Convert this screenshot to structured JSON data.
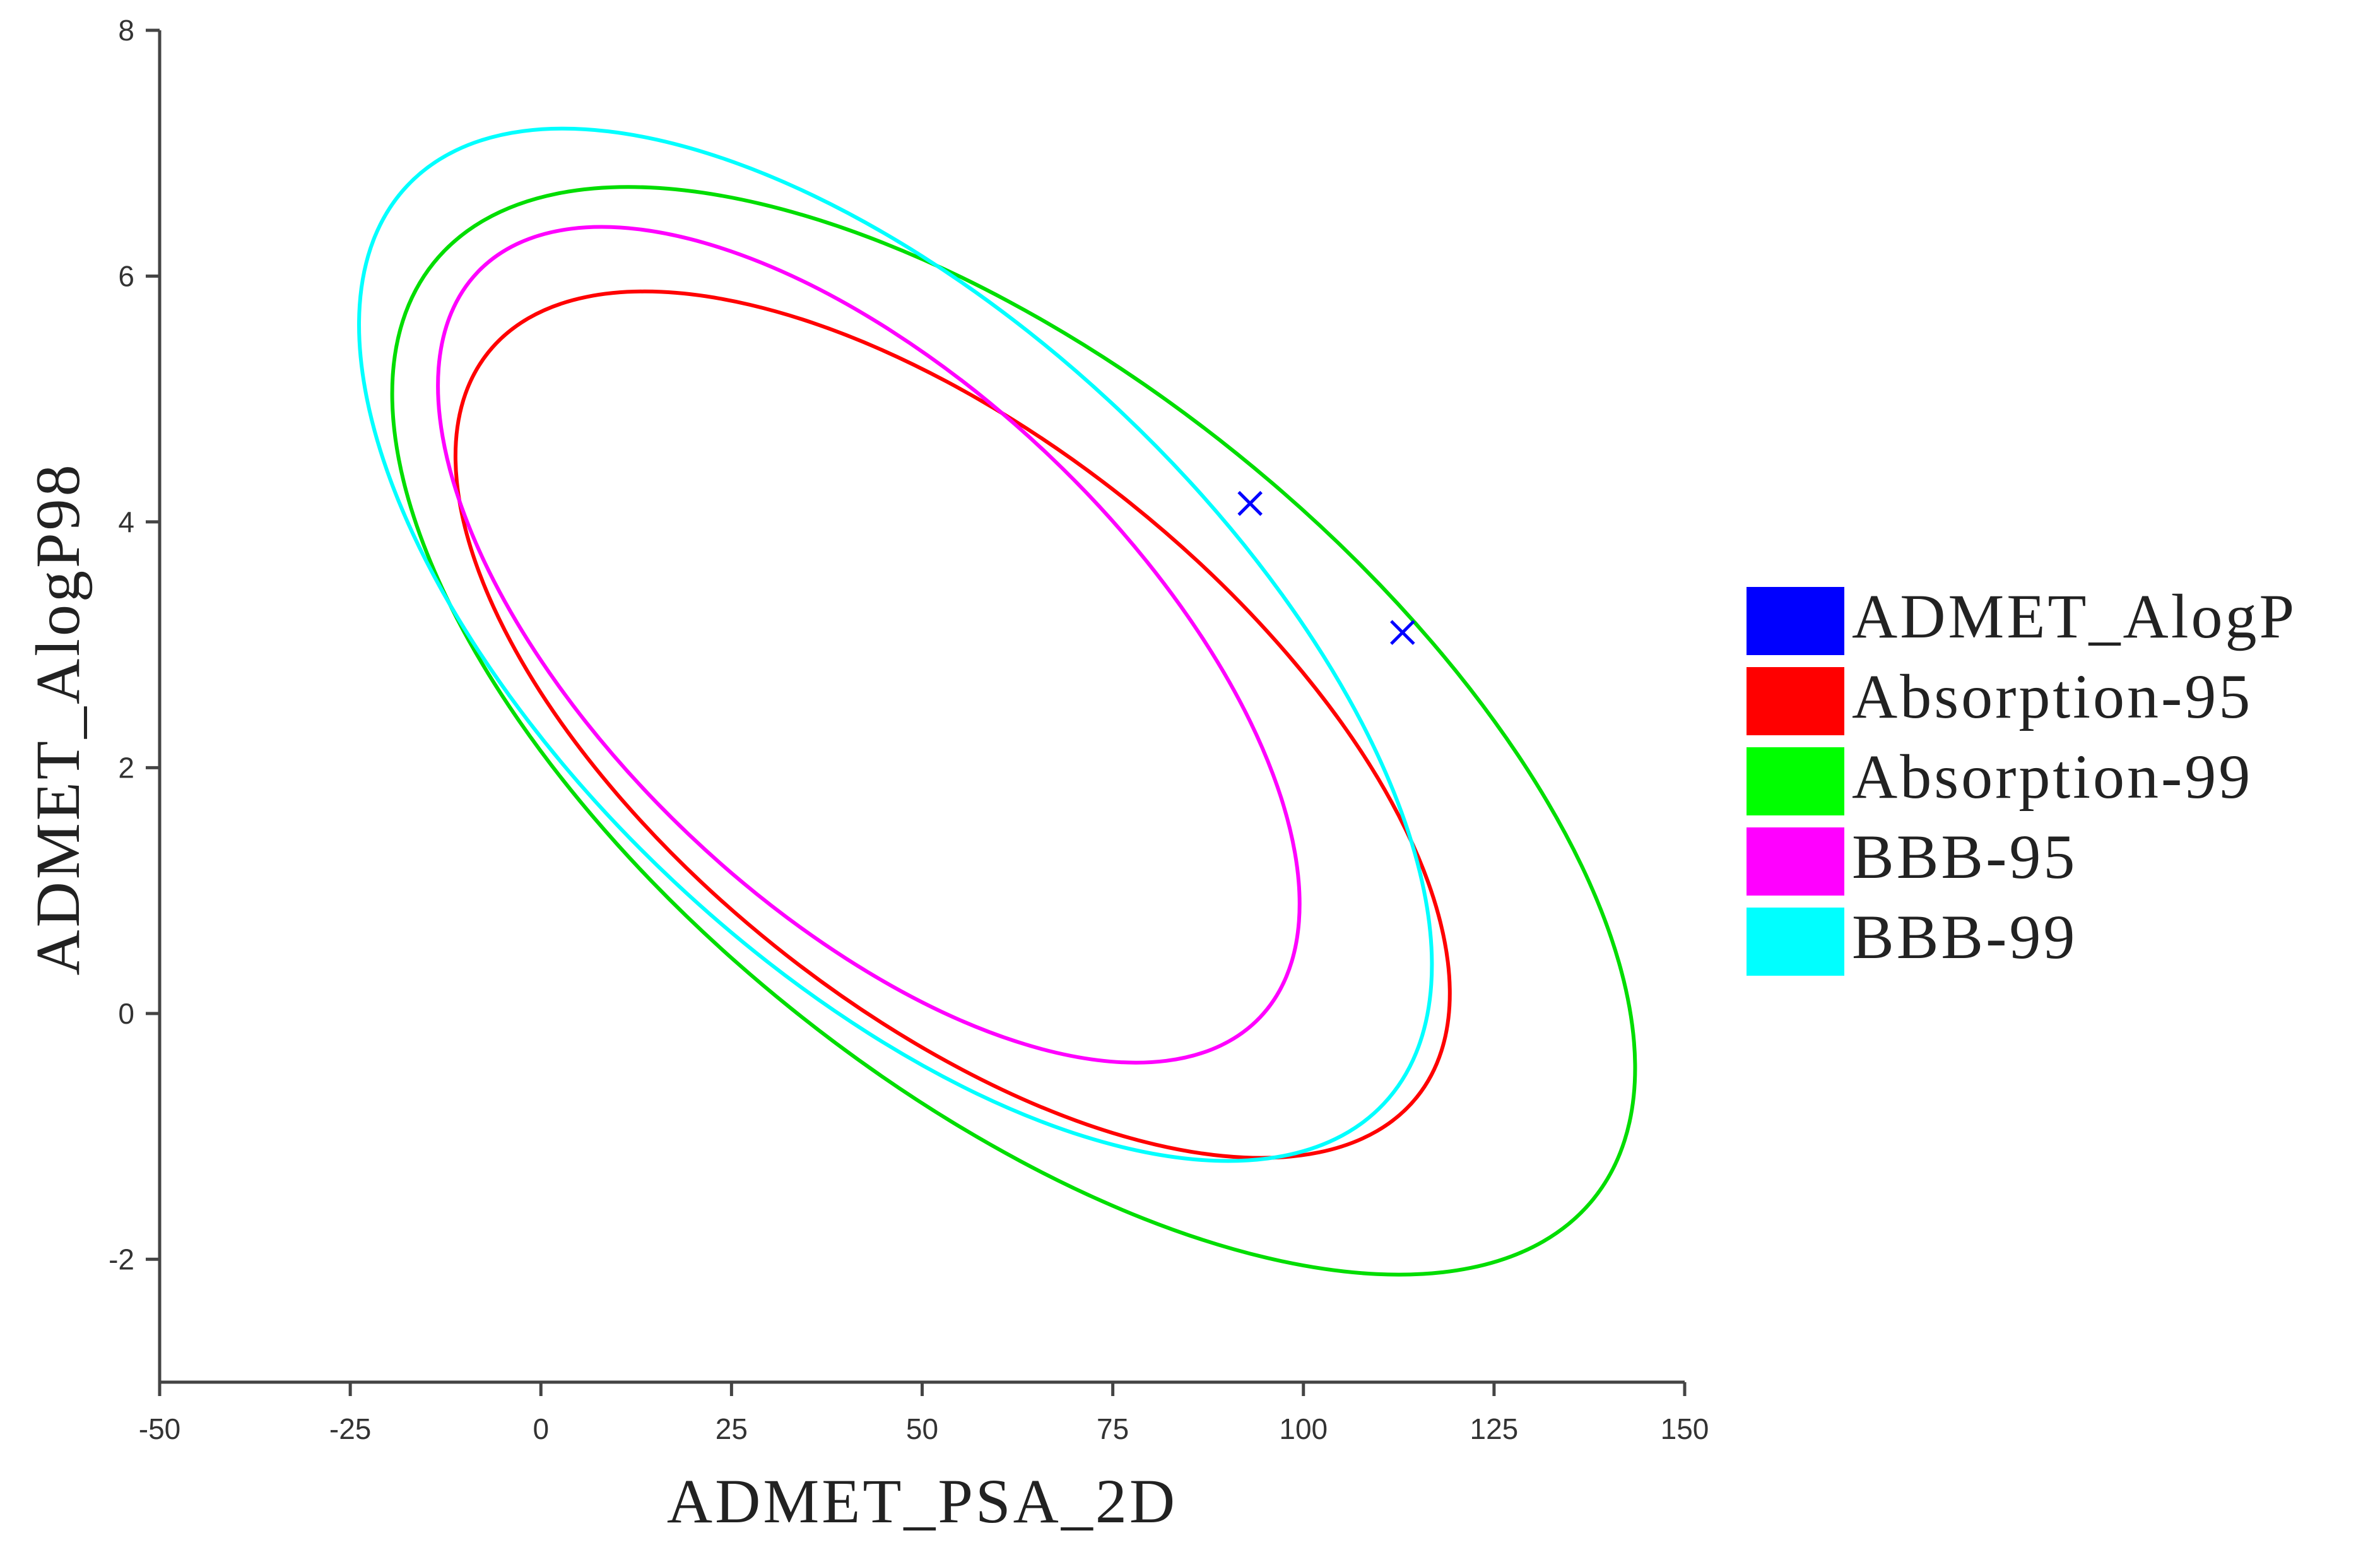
{
  "chart_data": {
    "type": "scatter",
    "xlabel": "ADMET_PSA_2D",
    "ylabel": "ADMET_AlogP98",
    "xlim": [
      -50,
      150
    ],
    "ylim": [
      -3,
      8
    ],
    "xticks": [
      "-50",
      "-25",
      "0",
      "25",
      "50",
      "75",
      "100",
      "125",
      "150"
    ],
    "yticks": [
      "-2",
      "0",
      "2",
      "4",
      "6",
      "8"
    ],
    "grid": false,
    "legend_position": "right",
    "points": {
      "name": "ADMET_AlogP",
      "color": "#0000ff",
      "marker": "x",
      "values": [
        {
          "x": 93,
          "y": 4.15
        },
        {
          "x": 113,
          "y": 3.1
        }
      ]
    },
    "ellipses": [
      {
        "name": "Absorption-95",
        "color": "#ff0000",
        "center": [
          54,
          2.35
        ],
        "extreme_x": [
          -1.6,
          128.8
        ],
        "extreme_y": [
          -1.2,
          5.85
        ]
      },
      {
        "name": "Absorption-99",
        "color": "#00dd00",
        "center": [
          62,
          2.3
        ],
        "extreme_x": [
          -18,
          145
        ],
        "extreme_y": [
          -2.1,
          6.75
        ]
      },
      {
        "name": "BBB-95",
        "color": "#ff00ff",
        "center": [
          43,
          3.0
        ],
        "extreme_x": [
          -13.4,
          99.6
        ],
        "extreme_y": [
          -0.4,
          6.4
        ]
      },
      {
        "name": "BBB-99",
        "color": "#00ffff",
        "center": [
          46.5,
          3.0
        ],
        "extreme_x": [
          -27.2,
          113.5
        ],
        "extreme_y": [
          -1.2,
          7.2
        ]
      }
    ],
    "legend": [
      {
        "label": "ADMET_AlogP",
        "color": "#0000ff"
      },
      {
        "label": "Absorption-95",
        "color": "#ff0000"
      },
      {
        "label": "Absorption-99",
        "color": "#00ff00"
      },
      {
        "label": "BBB-95",
        "color": "#ff00ff"
      },
      {
        "label": "BBB-99",
        "color": "#00ffff"
      }
    ]
  }
}
